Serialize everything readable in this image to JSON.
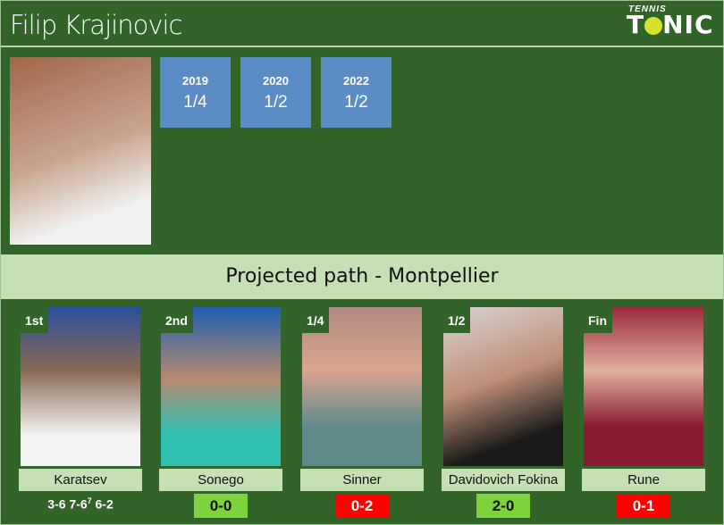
{
  "player": {
    "name": "Filip Krajinovic"
  },
  "logo": {
    "line1": "TENNIS",
    "line2_a": "T",
    "line2_b": "NIC"
  },
  "history": [
    {
      "year": "2019",
      "result": "1/4"
    },
    {
      "year": "2020",
      "result": "1/2"
    },
    {
      "year": "2022",
      "result": "1/2"
    }
  ],
  "banner": "Projected path - Montpellier",
  "colors": {
    "background": "#32642a",
    "year_box": "#5b8cc6",
    "label": "#c5e0b4",
    "win": "#7ed23e",
    "loss": "#ff0000"
  },
  "path": [
    {
      "round": "1st",
      "opponent": "Karatsev",
      "score": "3-6 7-6",
      "score_sup": "7",
      "score_end": " 6-2"
    },
    {
      "round": "2nd",
      "opponent": "Sonego",
      "h2h": "0-0",
      "h2h_status": "win"
    },
    {
      "round": "1/4",
      "opponent": "Sinner",
      "h2h": "0-2",
      "h2h_status": "loss"
    },
    {
      "round": "1/2",
      "opponent": "Davidovich Fokina",
      "h2h": "2-0",
      "h2h_status": "win"
    },
    {
      "round": "Fin",
      "opponent": "Rune",
      "h2h": "0-1",
      "h2h_status": "loss"
    }
  ]
}
